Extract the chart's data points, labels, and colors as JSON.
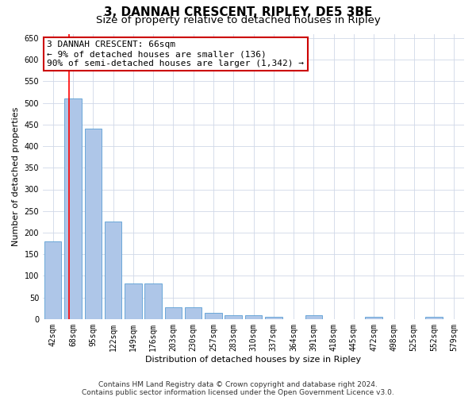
{
  "title": "3, DANNAH CRESCENT, RIPLEY, DE5 3BE",
  "subtitle": "Size of property relative to detached houses in Ripley",
  "xlabel": "Distribution of detached houses by size in Ripley",
  "ylabel": "Number of detached properties",
  "categories": [
    "42sqm",
    "68sqm",
    "95sqm",
    "122sqm",
    "149sqm",
    "176sqm",
    "203sqm",
    "230sqm",
    "257sqm",
    "283sqm",
    "310sqm",
    "337sqm",
    "364sqm",
    "391sqm",
    "418sqm",
    "445sqm",
    "472sqm",
    "498sqm",
    "525sqm",
    "552sqm",
    "579sqm"
  ],
  "values": [
    180,
    510,
    440,
    225,
    83,
    83,
    27,
    27,
    15,
    8,
    8,
    5,
    0,
    8,
    0,
    0,
    5,
    0,
    0,
    5,
    0
  ],
  "bar_color": "#aec6e8",
  "bar_edge_color": "#5a9fd4",
  "ylim": [
    0,
    660
  ],
  "yticks": [
    0,
    50,
    100,
    150,
    200,
    250,
    300,
    350,
    400,
    450,
    500,
    550,
    600,
    650
  ],
  "annotation_text": "3 DANNAH CRESCENT: 66sqm\n← 9% of detached houses are smaller (136)\n90% of semi-detached houses are larger (1,342) →",
  "footer_line1": "Contains HM Land Registry data © Crown copyright and database right 2024.",
  "footer_line2": "Contains public sector information licensed under the Open Government Licence v3.0.",
  "bg_color": "#ffffff",
  "grid_color": "#d0d8e8",
  "annotation_box_color": "#ffffff",
  "annotation_box_edge_color": "#cc0000",
  "title_fontsize": 11,
  "subtitle_fontsize": 9.5,
  "axis_label_fontsize": 8,
  "tick_fontsize": 7,
  "annotation_fontsize": 8,
  "footer_fontsize": 6.5,
  "red_line_bar_index": 0.82
}
